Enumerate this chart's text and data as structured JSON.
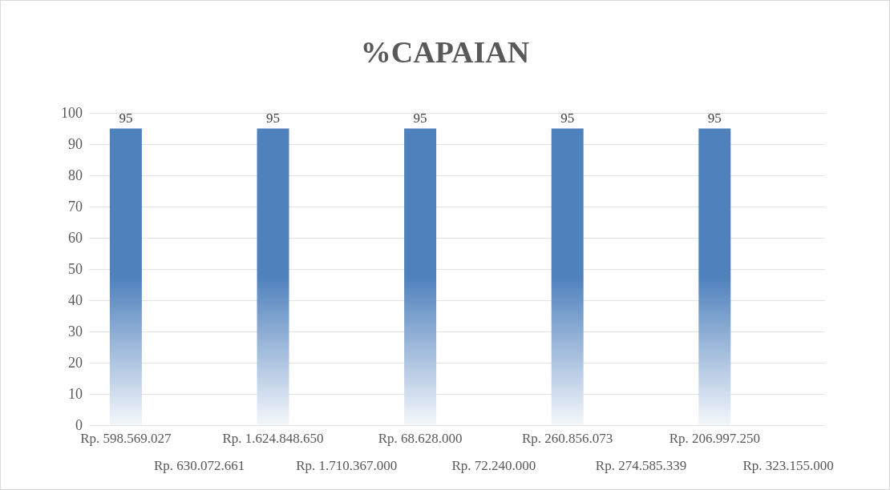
{
  "chart_data": {
    "type": "bar",
    "title": "%CAPAIAN",
    "categories": [
      "Rp. 598.569.027",
      "Rp. 630.072.661",
      "Rp. 1.624.848.650",
      "Rp. 1.710.367.000",
      "Rp. 68.628.000",
      "Rp. 72.240.000",
      "Rp. 260.856.073",
      "Rp. 274.585.339",
      "Rp. 206.997.250",
      "Rp. 323.155.000"
    ],
    "values": [
      95,
      null,
      95,
      null,
      95,
      null,
      95,
      null,
      95,
      null
    ],
    "color": "#4f81bd",
    "ylim": [
      0,
      100
    ],
    "yticks": [
      0,
      10,
      20,
      30,
      40,
      50,
      60,
      70,
      80,
      90,
      100
    ],
    "grid": "y",
    "data_labels": true
  }
}
